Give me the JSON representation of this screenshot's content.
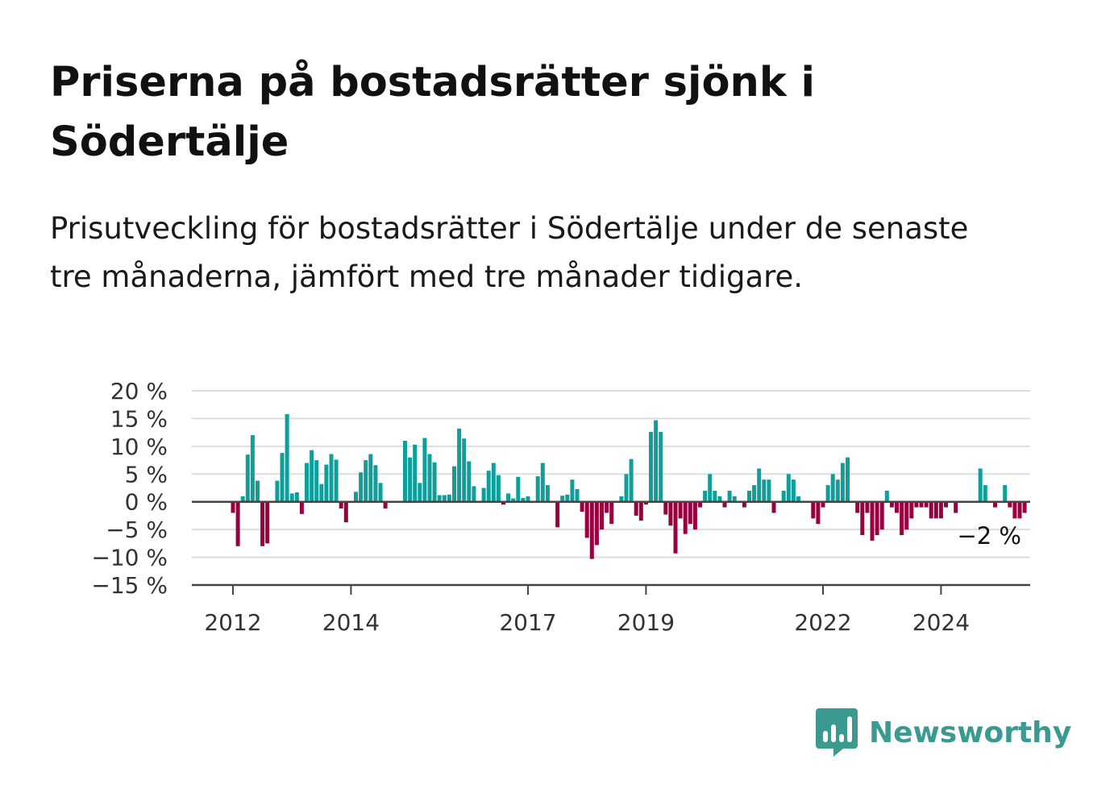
{
  "title": "Priserna på bostadsrätter sjönk i Södertälje",
  "subtitle": "Prisutveckling för bostadsrätter i Södertälje under de senaste tre månaderna, jämfört med tre månader tidigare.",
  "brand": {
    "name": "Newsworthy",
    "icon": "bar-chart-speech-bubble-icon",
    "color": "#3a9a8f"
  },
  "colors": {
    "positive": "#0f9e99",
    "negative": "#990040",
    "grid": "#dddddd",
    "axis": "#444444"
  },
  "chart_data": {
    "type": "bar",
    "ylim": [
      -15,
      20
    ],
    "yticks": [
      20,
      15,
      10,
      5,
      0,
      -5,
      -10,
      -15
    ],
    "ytick_labels": [
      "20 %",
      "15 %",
      "10 %",
      "5 %",
      "0 %",
      "−5 %",
      "−10 %",
      "−15 %"
    ],
    "xticks": [
      {
        "label": "2012",
        "index": 0
      },
      {
        "label": "2014",
        "index": 24
      },
      {
        "label": "2017",
        "index": 60
      },
      {
        "label": "2019",
        "index": 84
      },
      {
        "label": "2022",
        "index": 120
      },
      {
        "label": "2024",
        "index": 144
      }
    ],
    "grid": true,
    "annotation": {
      "text": "−2 %",
      "index": 155
    },
    "start": "2012-01",
    "frequency": "monthly",
    "values": [
      -2,
      -8,
      1,
      8.5,
      12,
      3.8,
      -8,
      -7.5,
      0,
      3.8,
      8.8,
      15.8,
      1.5,
      1.7,
      -2.2,
      7,
      9.3,
      7.5,
      3.2,
      6.7,
      8.6,
      7.6,
      -1.2,
      -3.7,
      0,
      1.8,
      5.3,
      7.5,
      8.6,
      6.6,
      3.4,
      -1.2,
      0,
      0,
      0,
      11,
      8,
      10.3,
      3.4,
      11.5,
      8.6,
      7.1,
      1.2,
      1.2,
      1.3,
      6.4,
      13.2,
      11.4,
      7.3,
      2.8,
      0,
      2.5,
      5.6,
      7,
      4.8,
      -0.5,
      1.5,
      0.6,
      4.5,
      0.7,
      1,
      0,
      4.6,
      7,
      3,
      0,
      -4.6,
      1.1,
      1.3,
      4,
      2.3,
      -1.8,
      -6.5,
      -10.3,
      -7.8,
      -5,
      -2,
      -4,
      0,
      1,
      5,
      7.7,
      -2.5,
      -3.4,
      -0.5,
      12.6,
      14.7,
      12.6,
      -2.3,
      -4.3,
      -9.3,
      -3,
      -5.8,
      -4,
      -5,
      -1,
      2,
      5,
      2,
      1,
      -1,
      2,
      1,
      0,
      -1,
      2,
      3,
      6,
      4,
      4,
      -2,
      0,
      2,
      5,
      4,
      1,
      0,
      0,
      -3,
      -4,
      -1,
      3,
      5,
      4,
      7,
      8,
      0,
      -2,
      -6,
      -2,
      -7,
      -6,
      -5,
      2,
      -1,
      -2,
      -6,
      -5,
      -3,
      -1,
      -1,
      -1,
      -3,
      -3,
      -3,
      -1,
      0,
      -2,
      0,
      0,
      0,
      0,
      6,
      3,
      0,
      -1,
      0,
      3,
      -1,
      -3,
      -3,
      -2
    ]
  }
}
